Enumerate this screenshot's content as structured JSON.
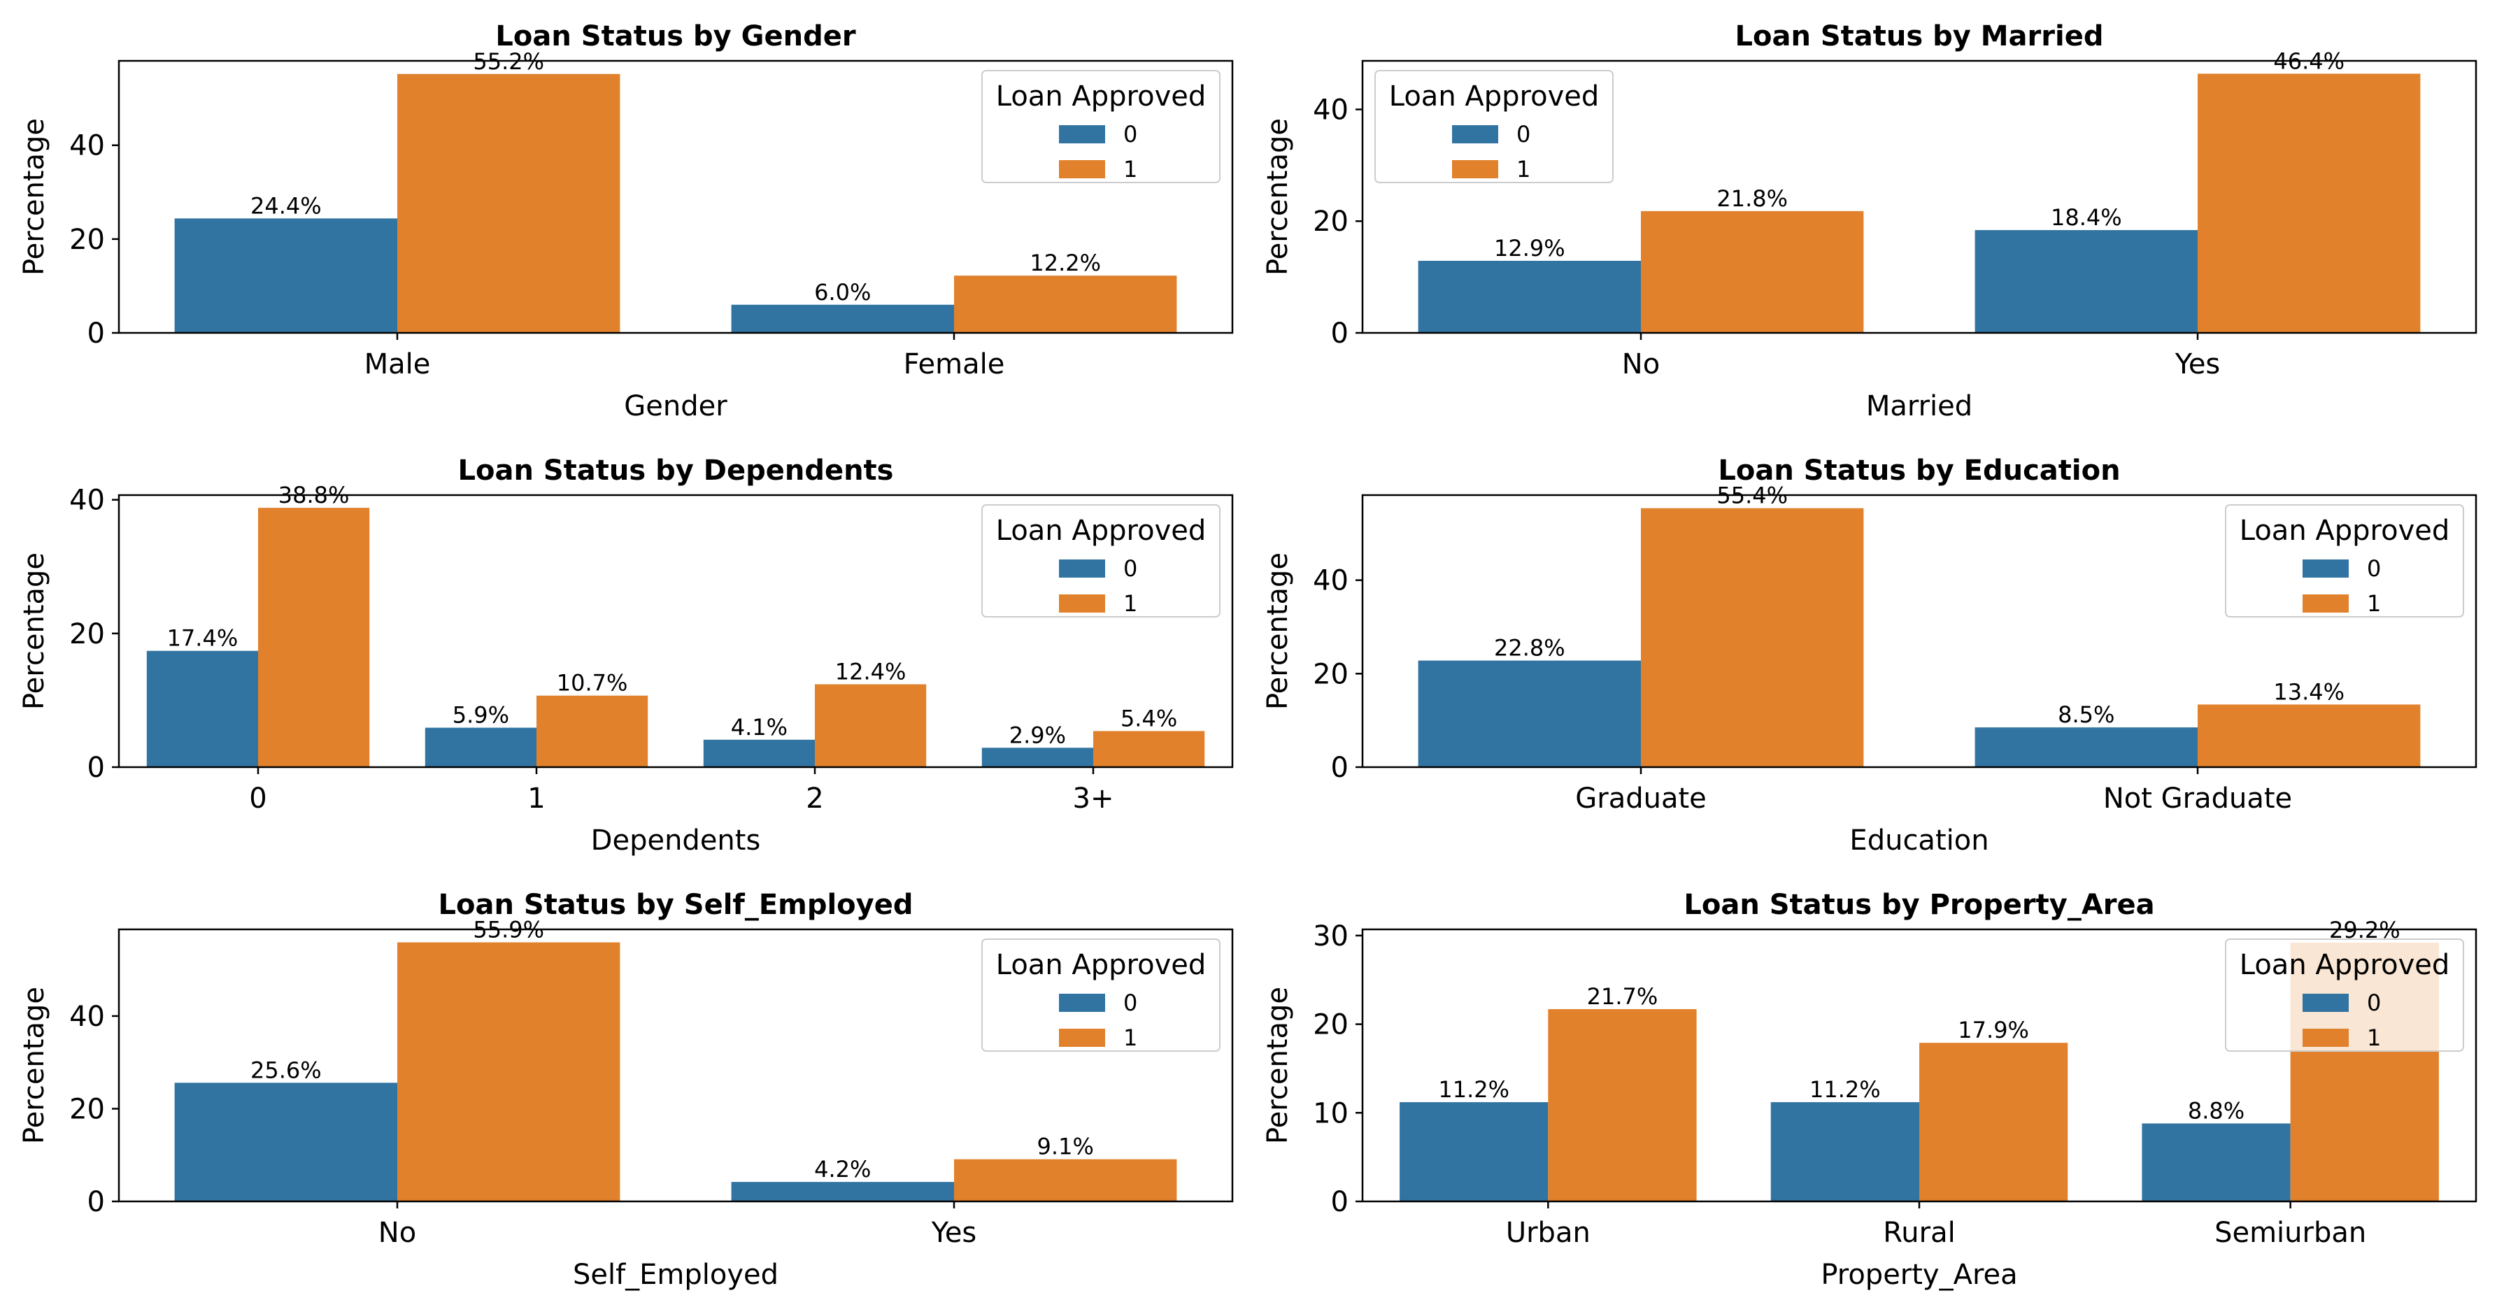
{
  "colors": {
    "series0": "#3274a1",
    "series1": "#e1812c",
    "axis": "#000000",
    "legend_border": "#cccccc"
  },
  "legend_title": "Loan Approved",
  "chart_data": [
    {
      "type": "bar",
      "title": "Loan Status by Gender",
      "xlabel": "Gender",
      "ylabel": "Percentage",
      "categories": [
        "Male",
        "Female"
      ],
      "series": [
        {
          "name": "0",
          "values": [
            24.4,
            6.0
          ],
          "labels": [
            "24.4%",
            "6.0%"
          ]
        },
        {
          "name": "1",
          "values": [
            55.2,
            12.2
          ],
          "labels": [
            "55.2%",
            "12.2%"
          ]
        }
      ],
      "ylim": [
        0,
        58
      ],
      "yticks": [
        0,
        20,
        40
      ],
      "legend": "top-right"
    },
    {
      "type": "bar",
      "title": "Loan Status by Married",
      "xlabel": "Married",
      "ylabel": "Percentage",
      "categories": [
        "No",
        "Yes"
      ],
      "series": [
        {
          "name": "0",
          "values": [
            12.9,
            18.4
          ],
          "labels": [
            "12.9%",
            "18.4%"
          ]
        },
        {
          "name": "1",
          "values": [
            21.8,
            46.4
          ],
          "labels": [
            "21.8%",
            "46.4%"
          ]
        }
      ],
      "ylim": [
        0,
        48.7
      ],
      "yticks": [
        0,
        20,
        40
      ],
      "legend": "top-left"
    },
    {
      "type": "bar",
      "title": "Loan Status by Dependents",
      "xlabel": "Dependents",
      "ylabel": "Percentage",
      "categories": [
        "0",
        "1",
        "2",
        "3+"
      ],
      "series": [
        {
          "name": "0",
          "values": [
            17.4,
            5.9,
            4.1,
            2.9
          ],
          "labels": [
            "17.4%",
            "5.9%",
            "4.1%",
            "2.9%"
          ]
        },
        {
          "name": "1",
          "values": [
            38.8,
            10.7,
            12.4,
            5.4
          ],
          "labels": [
            "38.8%",
            "10.7%",
            "12.4%",
            "5.4%"
          ]
        }
      ],
      "ylim": [
        0,
        40.7
      ],
      "yticks": [
        0,
        20,
        40
      ],
      "legend": "top-right"
    },
    {
      "type": "bar",
      "title": "Loan Status by Education",
      "xlabel": "Education",
      "ylabel": "Percentage",
      "categories": [
        "Graduate",
        "Not Graduate"
      ],
      "series": [
        {
          "name": "0",
          "values": [
            22.8,
            8.5
          ],
          "labels": [
            "22.8%",
            "8.5%"
          ]
        },
        {
          "name": "1",
          "values": [
            55.4,
            13.4
          ],
          "labels": [
            "55.4%",
            "13.4%"
          ]
        }
      ],
      "ylim": [
        0,
        58.2
      ],
      "yticks": [
        0,
        20,
        40
      ],
      "legend": "top-right"
    },
    {
      "type": "bar",
      "title": "Loan Status by Self_Employed",
      "xlabel": "Self_Employed",
      "ylabel": "Percentage",
      "categories": [
        "No",
        "Yes"
      ],
      "series": [
        {
          "name": "0",
          "values": [
            25.6,
            4.2
          ],
          "labels": [
            "25.6%",
            "4.2%"
          ]
        },
        {
          "name": "1",
          "values": [
            55.9,
            9.1
          ],
          "labels": [
            "55.9%",
            "9.1%"
          ]
        }
      ],
      "ylim": [
        0,
        58.7
      ],
      "yticks": [
        0,
        20,
        40
      ],
      "legend": "top-right"
    },
    {
      "type": "bar",
      "title": "Loan Status by Property_Area",
      "xlabel": "Property_Area",
      "ylabel": "Percentage",
      "categories": [
        "Urban",
        "Rural",
        "Semiurban"
      ],
      "series": [
        {
          "name": "0",
          "values": [
            11.2,
            11.2,
            8.8
          ],
          "labels": [
            "11.2%",
            "11.2%",
            "8.8%"
          ]
        },
        {
          "name": "1",
          "values": [
            21.7,
            17.9,
            29.2
          ],
          "labels": [
            "21.7%",
            "17.9%",
            "29.2%"
          ]
        }
      ],
      "ylim": [
        0,
        30.7
      ],
      "yticks": [
        0,
        10,
        20,
        30
      ],
      "legend": "top-right"
    }
  ]
}
